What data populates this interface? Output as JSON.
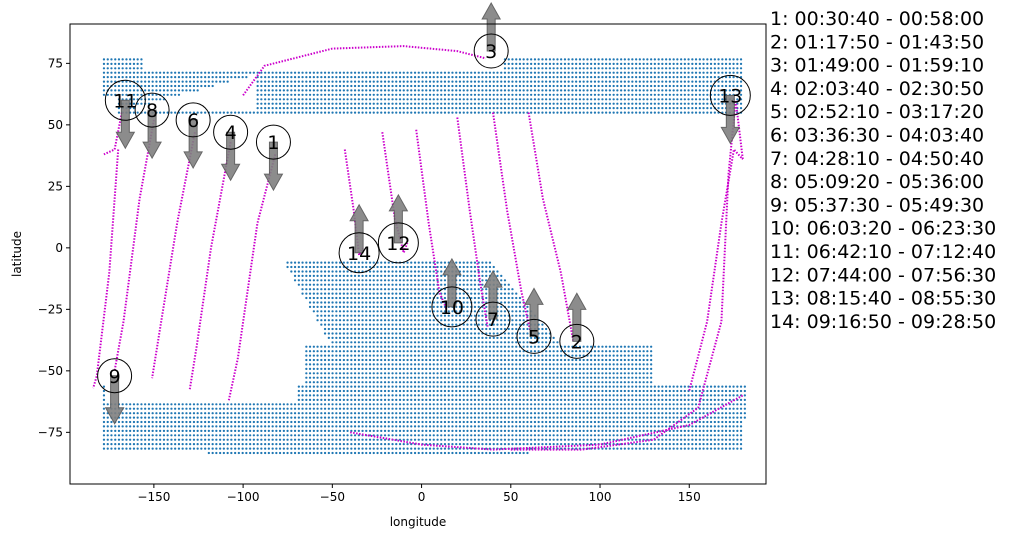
{
  "chart_data": {
    "type": "scatter",
    "title": "",
    "xlabel": "longitude",
    "ylabel": "latitude",
    "xlim": [
      -197,
      193
    ],
    "ylim": [
      -96,
      91
    ],
    "xticks": [
      -150,
      -100,
      -50,
      0,
      50,
      100,
      150
    ],
    "yticks": [
      -75,
      -50,
      -25,
      0,
      25,
      50,
      75
    ],
    "grid": false,
    "colors": {
      "coverage": "#1f77b4",
      "track": "#cc00cc",
      "arrow": "#808080"
    },
    "coverage": {
      "name": "",
      "region_north": {
        "lon": [
          -178,
          179
        ],
        "lat": [
          55,
          78
        ]
      },
      "region_south": {
        "lon": [
          -178,
          182
        ],
        "lat": [
          -87,
          -30
        ]
      }
    },
    "tracks": [
      {
        "id": "1",
        "points": [
          [
            -82,
            38
          ],
          [
            -92,
            10
          ],
          [
            -103,
            -45
          ],
          [
            -108,
            -62
          ]
        ]
      },
      {
        "id": "2",
        "points": [
          [
            60,
            55
          ],
          [
            68,
            20
          ],
          [
            78,
            -10
          ],
          [
            85,
            -38
          ]
        ]
      },
      {
        "id": "3",
        "points": [
          [
            -100,
            62
          ],
          [
            -88,
            74
          ],
          [
            -50,
            81
          ],
          [
            -10,
            82
          ],
          [
            20,
            80
          ],
          [
            36,
            77
          ]
        ]
      },
      {
        "id": "4",
        "points": [
          [
            -107,
            43
          ],
          [
            -118,
            0
          ],
          [
            -126,
            -40
          ],
          [
            -130,
            -58
          ]
        ]
      },
      {
        "id": "5",
        "points": [
          [
            40,
            55
          ],
          [
            48,
            15
          ],
          [
            56,
            -18
          ],
          [
            61,
            -34
          ]
        ]
      },
      {
        "id": "6",
        "points": [
          [
            -127,
            47
          ],
          [
            -137,
            10
          ],
          [
            -147,
            -35
          ],
          [
            -151,
            -53
          ]
        ]
      },
      {
        "id": "7",
        "points": [
          [
            20,
            53
          ],
          [
            27,
            15
          ],
          [
            33,
            -15
          ],
          [
            37,
            -32
          ]
        ]
      },
      {
        "id": "8",
        "points": [
          [
            -150,
            52
          ],
          [
            -158,
            20
          ],
          [
            -167,
            -30
          ],
          [
            -172,
            -50
          ]
        ]
      },
      {
        "id": "9",
        "points": [
          [
            -170,
            40
          ],
          [
            -175,
            -10
          ],
          [
            -182,
            -52
          ],
          [
            -184,
            -57
          ]
        ]
      },
      {
        "id": "10",
        "points": [
          [
            -3,
            48
          ],
          [
            4,
            10
          ],
          [
            10,
            -18
          ],
          [
            14,
            -25
          ]
        ]
      },
      {
        "id": "11",
        "points": [
          [
            -168,
            55
          ],
          [
            -172,
            40
          ],
          [
            -178,
            38
          ]
        ]
      },
      {
        "id": "12",
        "points": [
          [
            -22,
            47
          ],
          [
            -15,
            12
          ],
          [
            -10,
            -2
          ],
          [
            -8,
            2
          ]
        ]
      },
      {
        "id": "13",
        "points": [
          [
            50,
            -82
          ],
          [
            90,
            -82
          ],
          [
            130,
            -78
          ],
          [
            155,
            -65
          ],
          [
            168,
            -30
          ],
          [
            172,
            30
          ],
          [
            176,
            60
          ],
          [
            180,
            36
          ]
        ]
      },
      {
        "id": "14",
        "points": [
          [
            -43,
            40
          ],
          [
            -38,
            15
          ],
          [
            -35,
            -3
          ],
          [
            -33,
            0
          ]
        ]
      },
      {
        "id": "13b",
        "points": [
          [
            -40,
            -75
          ],
          [
            0,
            -80
          ],
          [
            40,
            -82
          ],
          [
            100,
            -80
          ],
          [
            150,
            -72
          ],
          [
            180,
            -60
          ]
        ]
      },
      {
        "id": "13c",
        "points": [
          [
            150,
            -58
          ],
          [
            160,
            -30
          ],
          [
            168,
            10
          ],
          [
            175,
            40
          ],
          [
            180,
            36
          ]
        ]
      }
    ],
    "markers": [
      {
        "label": "1",
        "lon": -83,
        "lat": 43,
        "direction": "down"
      },
      {
        "label": "2",
        "lon": 87,
        "lat": -38,
        "direction": "up"
      },
      {
        "label": "3",
        "lon": 39,
        "lat": 80,
        "direction": "up"
      },
      {
        "label": "4",
        "lon": -107,
        "lat": 47,
        "direction": "down"
      },
      {
        "label": "5",
        "lon": 63,
        "lat": -36,
        "direction": "up"
      },
      {
        "label": "6",
        "lon": -128,
        "lat": 52,
        "direction": "down"
      },
      {
        "label": "7",
        "lon": 40,
        "lat": -29,
        "direction": "up"
      },
      {
        "label": "8",
        "lon": -151,
        "lat": 56,
        "direction": "down"
      },
      {
        "label": "9",
        "lon": -172,
        "lat": -52,
        "direction": "down"
      },
      {
        "label": "10",
        "lon": 17,
        "lat": -24,
        "direction": "up"
      },
      {
        "label": "11",
        "lon": -166,
        "lat": 60,
        "direction": "down"
      },
      {
        "label": "12",
        "lon": -13,
        "lat": 2,
        "direction": "up"
      },
      {
        "label": "13",
        "lon": 173,
        "lat": 62,
        "direction": "down"
      },
      {
        "label": "14",
        "lon": -35,
        "lat": -2,
        "direction": "up"
      }
    ],
    "legend": [
      "1:  00:30:40 - 00:58:00",
      "2:  01:17:50 - 01:43:50",
      "3:  01:49:00 - 01:59:10",
      "4:  02:03:40 - 02:30:50",
      "5:  02:52:10 - 03:17:20",
      "6:  03:36:30 - 04:03:40",
      "7:  04:28:10 - 04:50:40",
      "8:  05:09:20 - 05:36:00",
      "9:  05:37:30 - 05:49:30",
      "10:  06:03:20 - 06:23:30",
      "11:  06:42:10 - 07:12:40",
      "12:  07:44:00 - 07:56:30",
      "13:  08:15:40 - 08:55:30",
      "14:  09:16:50 - 09:28:50"
    ],
    "legend_placement": "right"
  }
}
